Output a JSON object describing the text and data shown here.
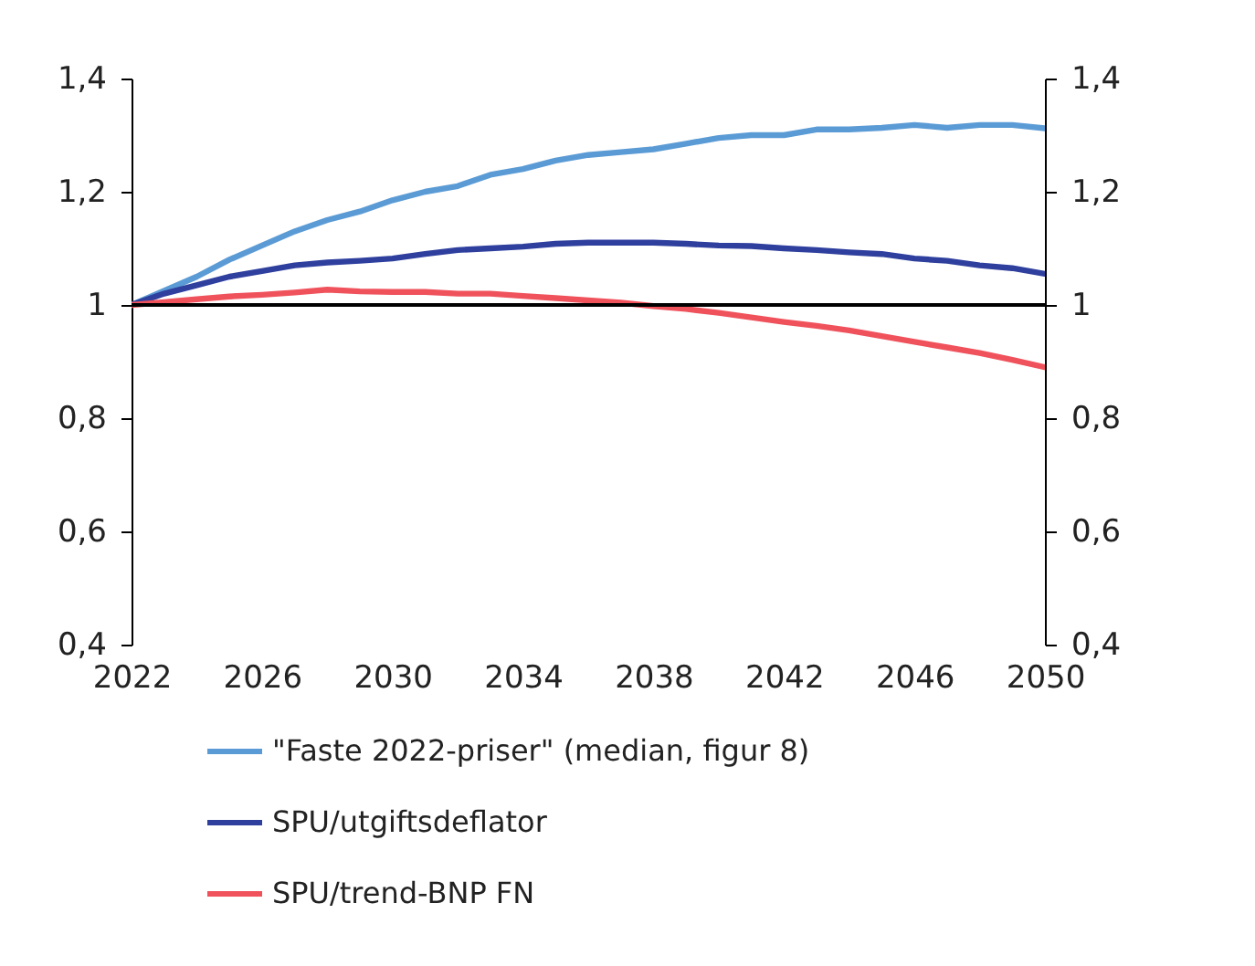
{
  "chart_data": {
    "type": "line",
    "x": [
      2022,
      2023,
      2024,
      2025,
      2026,
      2027,
      2028,
      2029,
      2030,
      2031,
      2032,
      2033,
      2034,
      2035,
      2036,
      2037,
      2038,
      2039,
      2040,
      2041,
      2042,
      2043,
      2044,
      2045,
      2046,
      2047,
      2048,
      2049,
      2050
    ],
    "series": [
      {
        "name": "\"Faste 2022-priser\" (median, figur 8)",
        "color": "#5b9bd5",
        "values": [
          1.0,
          1.025,
          1.05,
          1.08,
          1.105,
          1.13,
          1.15,
          1.165,
          1.185,
          1.2,
          1.21,
          1.23,
          1.24,
          1.255,
          1.265,
          1.27,
          1.275,
          1.285,
          1.295,
          1.3,
          1.3,
          1.31,
          1.31,
          1.313,
          1.318,
          1.313,
          1.318,
          1.318,
          1.312
        ]
      },
      {
        "name": "SPU/utgiftsdeflator",
        "color": "#2e3f9e",
        "values": [
          1.0,
          1.02,
          1.035,
          1.05,
          1.06,
          1.07,
          1.075,
          1.078,
          1.082,
          1.09,
          1.097,
          1.1,
          1.103,
          1.108,
          1.11,
          1.11,
          1.11,
          1.108,
          1.105,
          1.104,
          1.1,
          1.097,
          1.093,
          1.09,
          1.082,
          1.078,
          1.07,
          1.065,
          1.055
        ]
      },
      {
        "name": "SPU/trend-BNP FN",
        "color": "#f0525c",
        "values": [
          1.0,
          1.005,
          1.01,
          1.015,
          1.018,
          1.022,
          1.027,
          1.024,
          1.023,
          1.023,
          1.02,
          1.02,
          1.016,
          1.012,
          1.008,
          1.004,
          0.998,
          0.993,
          0.986,
          0.978,
          0.97,
          0.963,
          0.955,
          0.945,
          0.935,
          0.925,
          0.915,
          0.903,
          0.89
        ]
      }
    ],
    "xlim": [
      2022,
      2050
    ],
    "xticks": [
      2022,
      2026,
      2030,
      2034,
      2038,
      2042,
      2046,
      2050
    ],
    "ylim": [
      0.4,
      1.4
    ],
    "yticks": [
      {
        "value": 0.4,
        "label": "0,4"
      },
      {
        "value": 0.6,
        "label": "0,6"
      },
      {
        "value": 0.8,
        "label": "0,8"
      },
      {
        "value": 1,
        "label": "1"
      },
      {
        "value": 1.2,
        "label": "1,2"
      },
      {
        "value": 1.4,
        "label": "1,4"
      }
    ],
    "y2lim": [
      0.4,
      1.4
    ],
    "y2ticks": [
      {
        "value": 0.4,
        "label": "0,4"
      },
      {
        "value": 0.6,
        "label": "0,6"
      },
      {
        "value": 0.8,
        "label": "0,8"
      },
      {
        "value": 1,
        "label": "1"
      },
      {
        "value": 1.2,
        "label": "1,2"
      },
      {
        "value": 1.4,
        "label": "1,4"
      }
    ],
    "ref_lines": [
      {
        "axis": "y",
        "value": 1,
        "color": "#000000"
      }
    ],
    "legend": "bottom",
    "grid": false,
    "marker": "none",
    "line_style": "solid"
  }
}
